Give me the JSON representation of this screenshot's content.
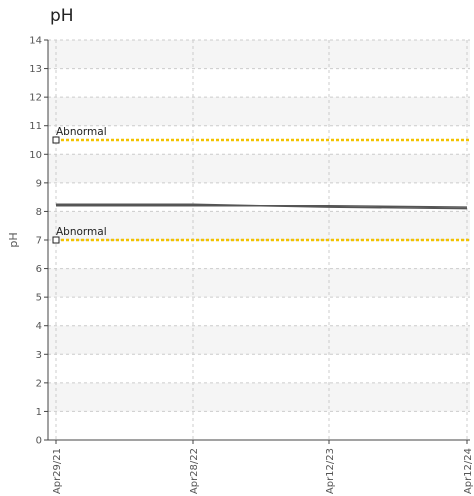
{
  "chart_data": {
    "type": "line",
    "title": "pH",
    "ylabel": "pH",
    "xlabel": "",
    "ylim": [
      0,
      14
    ],
    "y_ticks": [
      0,
      1,
      2,
      3,
      4,
      5,
      6,
      7,
      8,
      9,
      10,
      11,
      12,
      13,
      14
    ],
    "x_ticks": [
      "Apr29/21",
      "Apr28/22",
      "Apr12/23",
      "Apr12/24"
    ],
    "grid": true,
    "series": [
      {
        "x": [
          "Apr29/21",
          "Apr28/22",
          "Apr12/23",
          "Apr12/24"
        ],
        "values": [
          8.25,
          8.25,
          8.15,
          8.1
        ]
      },
      {
        "x": [
          "Apr29/21",
          "Apr28/22",
          "Apr12/23",
          "Apr12/24"
        ],
        "values": [
          8.2,
          8.2,
          8.2,
          8.15
        ]
      }
    ],
    "reference_lines": [
      {
        "label": "Abnormal",
        "value": 10.5,
        "color": "#f2c200"
      },
      {
        "label": "Abnormal",
        "value": 7.0,
        "color": "#f2c200"
      }
    ],
    "colors": {
      "series": "#555555",
      "band": "#f5f5f5",
      "grid": "#cccccc",
      "axis": "#444444"
    }
  }
}
